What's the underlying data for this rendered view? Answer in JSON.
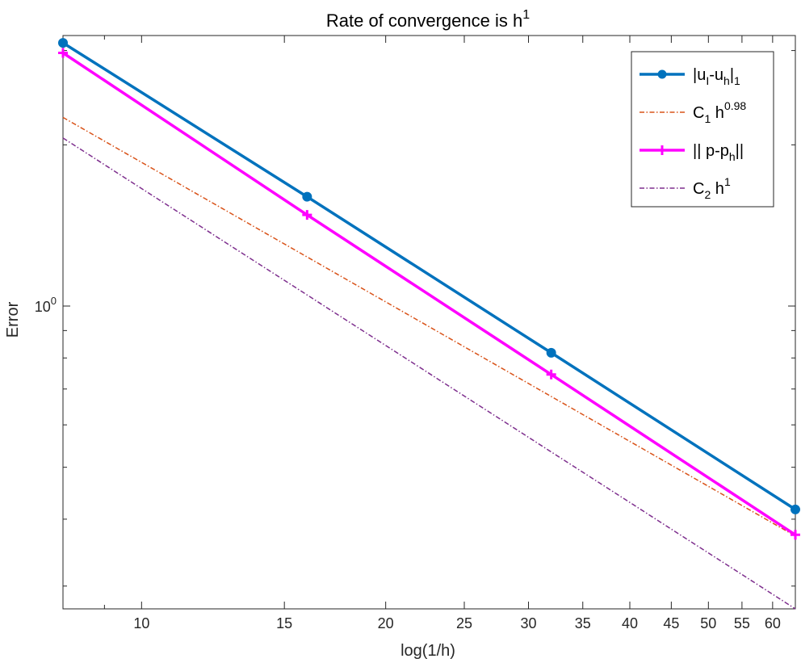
{
  "chart_data": {
    "type": "line",
    "title": {
      "base": "Rate of convergence is h",
      "sup": "1"
    },
    "xlabel": "log(1/h)",
    "ylabel": "Error",
    "xscale": "log",
    "yscale": "log",
    "xlim": [
      8,
      64
    ],
    "ylim": [
      0.272,
      3.2
    ],
    "xticks": [
      10,
      15,
      20,
      25,
      30,
      35,
      40,
      45,
      50,
      55,
      60
    ],
    "xtick_labels": [
      "10",
      "15",
      "20",
      "25",
      "30",
      "35",
      "40",
      "45",
      "50",
      "55",
      "60"
    ],
    "ytick_label": {
      "base": "10",
      "sup": "0"
    },
    "grid": false,
    "legend_position": "top-right",
    "series": [
      {
        "legend": {
          "parts": [
            [
              "|u",
              ""
            ],
            [
              "I",
              "sub"
            ],
            [
              "-u",
              ""
            ],
            [
              "h",
              "sub"
            ],
            [
              "|",
              ""
            ],
            [
              "1",
              "sub"
            ]
          ]
        },
        "x": [
          8,
          16,
          32,
          64
        ],
        "y": [
          3.1,
          1.6,
          0.818,
          0.417
        ],
        "color": "#0072BD",
        "style": "solid",
        "marker": "circle"
      },
      {
        "legend": {
          "parts": [
            [
              "C",
              ""
            ],
            [
              "1",
              "sub"
            ],
            [
              " h",
              ""
            ],
            [
              "0.98",
              "sup"
            ]
          ]
        },
        "x": [
          8,
          64
        ],
        "y": [
          2.25,
          0.372
        ],
        "color": "#D95319",
        "style": "dashdot",
        "marker": "none"
      },
      {
        "legend": {
          "parts": [
            [
              "|| p-p",
              ""
            ],
            [
              "h",
              "sub"
            ],
            [
              "||",
              ""
            ]
          ]
        },
        "x": [
          8,
          16,
          32,
          64
        ],
        "y": [
          2.97,
          1.48,
          0.745,
          0.374
        ],
        "color": "#FF00FF",
        "style": "solid",
        "marker": "plus"
      },
      {
        "legend": {
          "parts": [
            [
              "C",
              ""
            ],
            [
              "2",
              "sub"
            ],
            [
              " h",
              ""
            ],
            [
              "1",
              "sup"
            ]
          ]
        },
        "x": [
          8,
          64
        ],
        "y": [
          2.06,
          0.272
        ],
        "color": "#7E2F8E",
        "style": "dashdot",
        "marker": "none"
      }
    ]
  }
}
